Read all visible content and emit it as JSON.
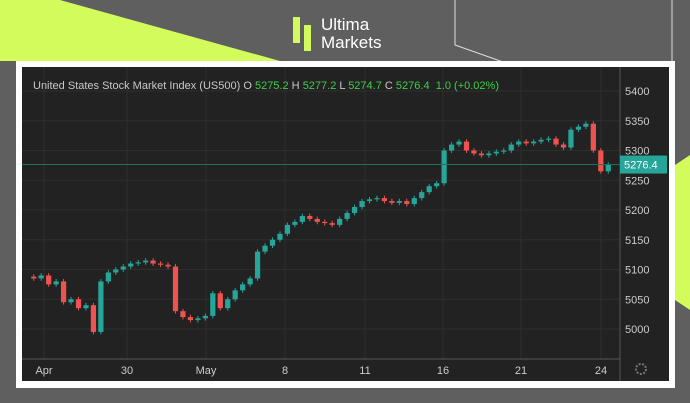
{
  "brand": {
    "line1": "Ultima",
    "line2": "Markets",
    "accent": "#d4fb5c"
  },
  "legend": {
    "title": "United States Stock Market Index (US500)",
    "o_label": "O",
    "o": "5275.2",
    "h_label": "H",
    "h": "5277.2",
    "l_label": "L",
    "l": "5274.7",
    "c_label": "C",
    "c": "5276.4",
    "change": "1.0 (+0.02%)"
  },
  "chart_data": {
    "type": "candlestick",
    "ylim": [
      4960,
      5420
    ],
    "yticks": [
      5000,
      5050,
      5100,
      5150,
      5200,
      5250,
      5300,
      5350,
      5400
    ],
    "xticks": [
      "Apr",
      "30",
      "May",
      "8",
      "11",
      "16",
      "21",
      "24"
    ],
    "last_price": 5276.4,
    "last_price_label": "5276.4",
    "closes": [
      5085,
      5090,
      5075,
      5080,
      5045,
      5050,
      5035,
      5040,
      4995,
      5080,
      5095,
      5100,
      5105,
      5110,
      5112,
      5115,
      5110,
      5108,
      5105,
      5030,
      5020,
      5015,
      5018,
      5022,
      5060,
      5035,
      5050,
      5065,
      5075,
      5085,
      5130,
      5140,
      5150,
      5160,
      5175,
      5180,
      5190,
      5185,
      5180,
      5178,
      5175,
      5185,
      5195,
      5205,
      5215,
      5218,
      5220,
      5215,
      5212,
      5215,
      5210,
      5220,
      5230,
      5240,
      5245,
      5300,
      5310,
      5315,
      5300,
      5295,
      5292,
      5295,
      5298,
      5300,
      5310,
      5315,
      5312,
      5315,
      5318,
      5320,
      5310,
      5305,
      5335,
      5340,
      5345,
      5300,
      5265,
      5276
    ],
    "up_color": "#26a69a",
    "down_color": "#ef5350"
  }
}
